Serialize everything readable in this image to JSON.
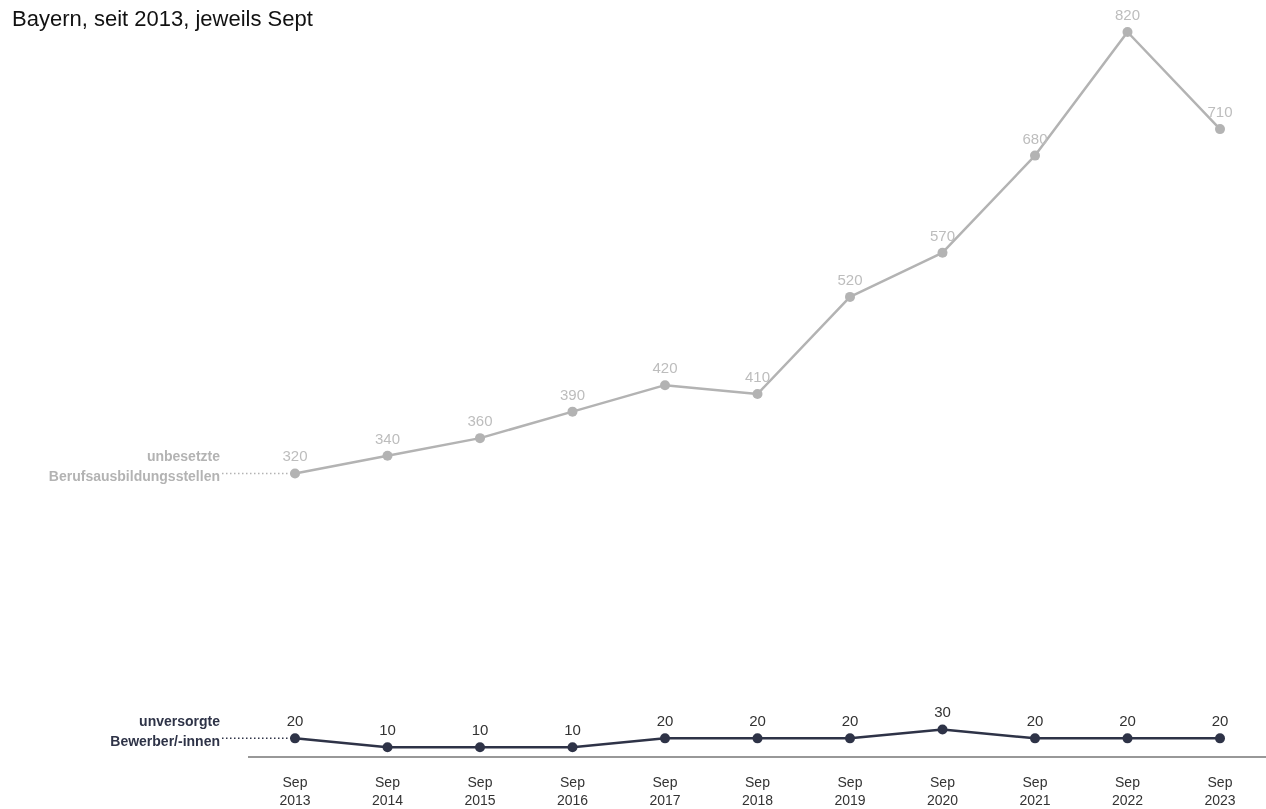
{
  "chart_data": {
    "type": "line",
    "title": "Bayern, seit 2013, jeweils Sept",
    "categories": [
      "Sep 2013",
      "Sep 2014",
      "Sep 2015",
      "Sep 2016",
      "Sep 2017",
      "Sep 2018",
      "Sep 2019",
      "Sep 2020",
      "Sep 2021",
      "Sep 2022",
      "Sep 2023"
    ],
    "series": [
      {
        "name": "unbesetzte Berufsausbildungsstellen",
        "color": "#b3b3b3",
        "values": [
          320,
          340,
          360,
          390,
          420,
          410,
          520,
          570,
          680,
          820,
          710
        ]
      },
      {
        "name": "unversorgte Bewerber/-innen",
        "color": "#2e3347",
        "values": [
          20,
          10,
          10,
          10,
          20,
          20,
          20,
          30,
          20,
          20,
          20
        ]
      }
    ],
    "legend": "left",
    "tick_labels": "x",
    "marker": "circle",
    "line_style": "solid",
    "data_labels": true
  }
}
